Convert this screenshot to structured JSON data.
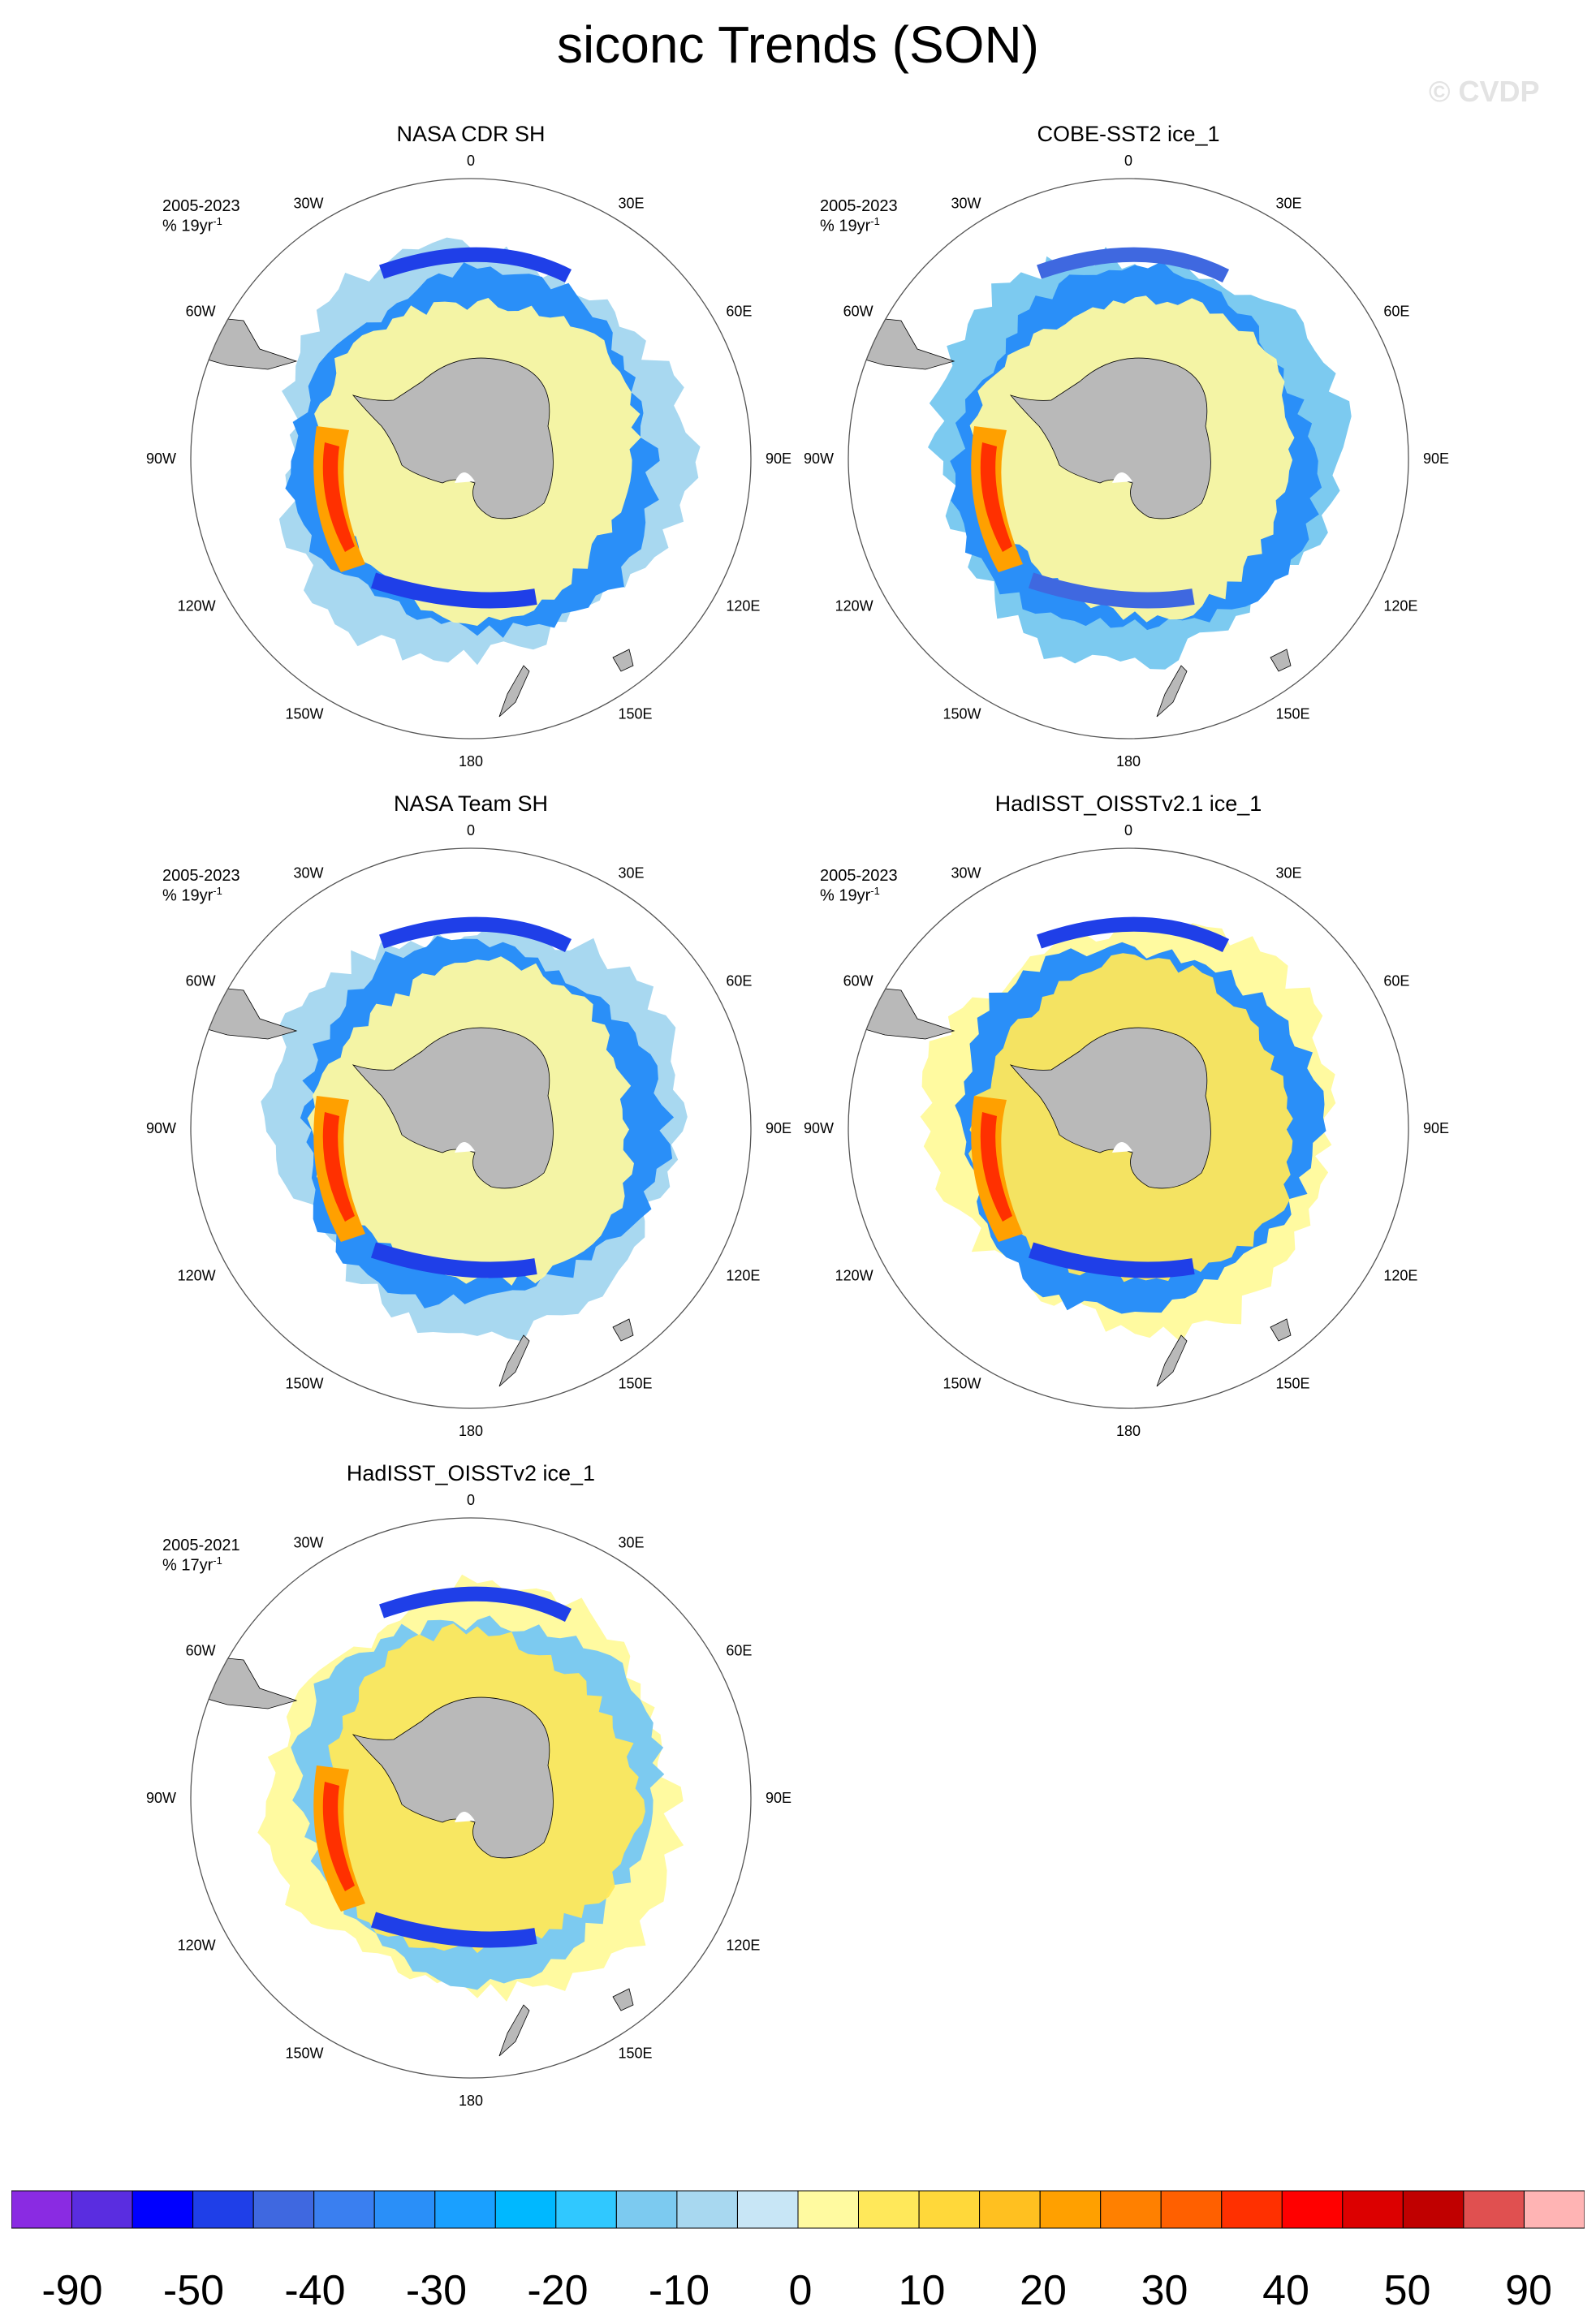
{
  "figure": {
    "title": "siconc Trends (SON)",
    "watermark": "© CVDP"
  },
  "panels": [
    {
      "id": "p1",
      "title": "NASA CDR SH",
      "period": "2005-2023",
      "units_base": "% 19yr",
      "units_exp": "-1",
      "style": "cdr"
    },
    {
      "id": "p2",
      "title": "COBE-SST2 ice_1",
      "period": "2005-2023",
      "units_base": "% 19yr",
      "units_exp": "-1",
      "style": "cobe"
    },
    {
      "id": "p3",
      "title": "NASA Team SH",
      "period": "2005-2023",
      "units_base": "% 19yr",
      "units_exp": "-1",
      "style": "team"
    },
    {
      "id": "p4",
      "title": "HadISST_OISSTv2.1 ice_1",
      "period": "2005-2023",
      "units_base": "% 19yr",
      "units_exp": "-1",
      "style": "had21"
    },
    {
      "id": "p5",
      "title": "HadISST_OISSTv2 ice_1",
      "period": "2005-2021",
      "units_base": "% 17yr",
      "units_exp": "-1",
      "style": "had2"
    }
  ],
  "lon_labels": [
    "0",
    "30E",
    "60E",
    "90E",
    "120E",
    "150E",
    "180",
    "150W",
    "120W",
    "90W",
    "60W",
    "30W"
  ],
  "colorbar": {
    "colors": [
      "#8a2be2",
      "#5a2de0",
      "#0000ff",
      "#1f3fe8",
      "#3f68e0",
      "#3a7ff0",
      "#2a8ff8",
      "#1aa0ff",
      "#00b8ff",
      "#30c8ff",
      "#7ccaf0",
      "#a8d8f0",
      "#c8e6f6",
      "#fffaa0",
      "#ffe85a",
      "#ffd83a",
      "#ffc020",
      "#ffa000",
      "#ff8000",
      "#ff6000",
      "#ff3000",
      "#ff0000",
      "#dc0000",
      "#c00000",
      "#e05050",
      "#ffb4b4"
    ],
    "labels": [
      "-90",
      "-50",
      "-40",
      "-30",
      "-20",
      "-10",
      "0",
      "10",
      "20",
      "30",
      "40",
      "50",
      "90"
    ]
  }
}
